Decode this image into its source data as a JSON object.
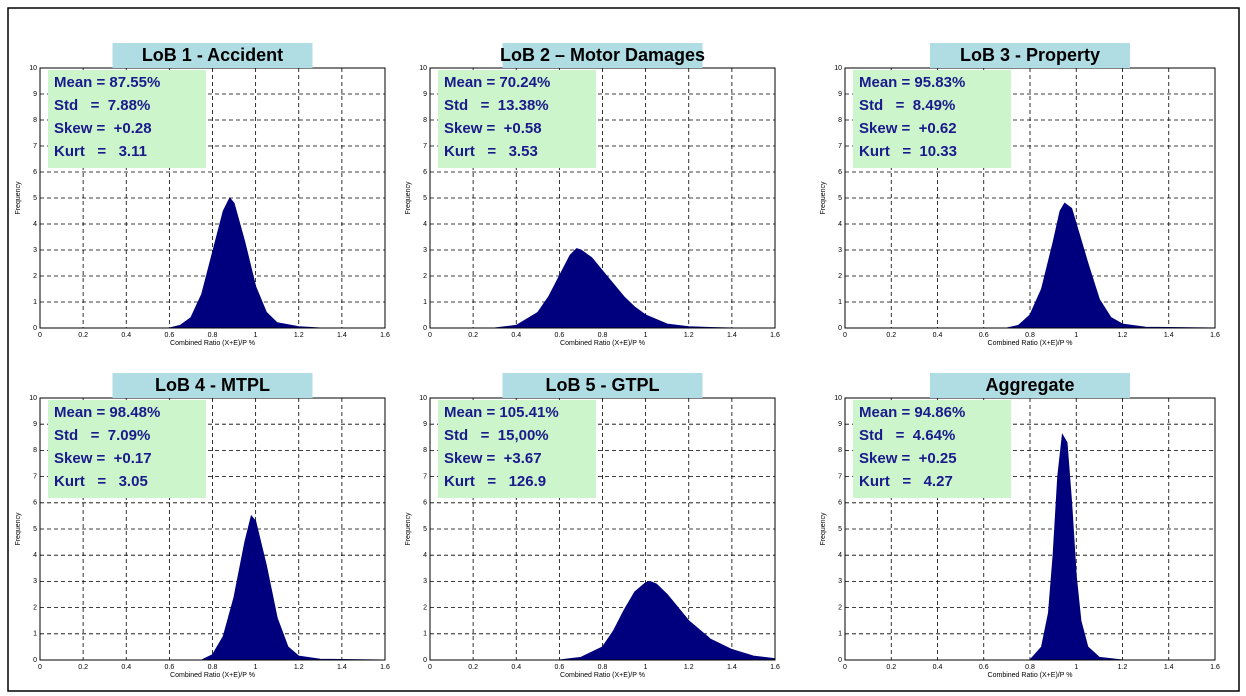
{
  "chart_data": [
    {
      "type": "area",
      "title": "LoB 1 - Accident",
      "stats": [
        "Mean = 87.55%",
        "Std   =  7.88%",
        "Skew =  +0.28",
        "Kurt   =   3.11"
      ],
      "x_label": "Combined Ratio (X+E)/P %",
      "y_label": "Frequency",
      "color": "#00007f",
      "x": [
        0.6,
        0.65,
        0.7,
        0.75,
        0.8,
        0.85,
        0.88,
        0.9,
        0.95,
        1.0,
        1.05,
        1.1,
        1.2,
        1.3
      ],
      "values": [
        0,
        0.1,
        0.4,
        1.3,
        2.9,
        4.5,
        5.0,
        4.8,
        3.3,
        1.6,
        0.6,
        0.2,
        0.05,
        0
      ],
      "xlim": [
        0,
        1.6
      ],
      "xticks": [
        0,
        0.2,
        0.4,
        0.6,
        0.8,
        1,
        1.2,
        1.4,
        1.6
      ],
      "ylim": [
        0,
        10
      ],
      "yticks": [
        0,
        1,
        2,
        3,
        4,
        5,
        6,
        7,
        8,
        9,
        10
      ],
      "grid": true
    },
    {
      "type": "area",
      "title": "LoB 2 – Motor Damages",
      "stats": [
        "Mean = 70.24%",
        "Std   =  13.38%",
        "Skew =  +0.58",
        "Kurt   =   3.53"
      ],
      "x_label": "Combined Ratio (X+E)/P %",
      "y_label": "Frequency",
      "color": "#00007f",
      "x": [
        0.3,
        0.4,
        0.5,
        0.55,
        0.6,
        0.65,
        0.68,
        0.7,
        0.75,
        0.8,
        0.85,
        0.9,
        0.95,
        1.0,
        1.1,
        1.2,
        1.3,
        1.4
      ],
      "values": [
        0,
        0.1,
        0.6,
        1.2,
        2.0,
        2.8,
        3.05,
        3.0,
        2.7,
        2.2,
        1.7,
        1.2,
        0.8,
        0.5,
        0.15,
        0.05,
        0.02,
        0
      ],
      "xlim": [
        0,
        1.6
      ],
      "xticks": [
        0,
        0.2,
        0.4,
        0.6,
        0.8,
        1,
        1.2,
        1.4,
        1.6
      ],
      "ylim": [
        0,
        10
      ],
      "yticks": [
        0,
        1,
        2,
        3,
        4,
        5,
        6,
        7,
        8,
        9,
        10
      ],
      "grid": true
    },
    {
      "type": "area",
      "title": "LoB 3 - Property",
      "stats": [
        "Mean = 95.83%",
        "Std   =  8.49%",
        "Skew =  +0.62",
        "Kurt   =  10.33"
      ],
      "x_label": "Combined Ratio (X+E)/P %",
      "y_label": "Frequency",
      "color": "#00007f",
      "x": [
        0.7,
        0.75,
        0.8,
        0.85,
        0.9,
        0.93,
        0.95,
        0.98,
        1.0,
        1.05,
        1.1,
        1.15,
        1.2,
        1.3,
        1.6
      ],
      "values": [
        0,
        0.1,
        0.5,
        1.5,
        3.3,
        4.5,
        4.8,
        4.6,
        4.0,
        2.5,
        1.1,
        0.4,
        0.15,
        0.03,
        0
      ],
      "xlim": [
        0,
        1.6
      ],
      "xticks": [
        0,
        0.2,
        0.4,
        0.6,
        0.8,
        1,
        1.2,
        1.4,
        1.6
      ],
      "ylim": [
        0,
        10
      ],
      "yticks": [
        0,
        1,
        2,
        3,
        4,
        5,
        6,
        7,
        8,
        9,
        10
      ],
      "grid": true
    },
    {
      "type": "area",
      "title": "LoB 4 - MTPL",
      "stats": [
        "Mean = 98.48%",
        "Std   =  7.09%",
        "Skew =  +0.17",
        "Kurt   =   3.05"
      ],
      "x_label": "Combined Ratio (X+E)/P %",
      "y_label": "Frequency",
      "color": "#00007f",
      "x": [
        0.75,
        0.8,
        0.85,
        0.9,
        0.95,
        0.98,
        1.0,
        1.05,
        1.1,
        1.15,
        1.2,
        1.3,
        1.6
      ],
      "values": [
        0,
        0.2,
        0.9,
        2.4,
        4.5,
        5.5,
        5.3,
        3.6,
        1.6,
        0.5,
        0.15,
        0.03,
        0
      ],
      "xlim": [
        0,
        1.6
      ],
      "xticks": [
        0,
        0.2,
        0.4,
        0.6,
        0.8,
        1,
        1.2,
        1.4,
        1.6
      ],
      "ylim": [
        0,
        10
      ],
      "yticks": [
        0,
        1,
        2,
        3,
        4,
        5,
        6,
        7,
        8,
        9,
        10
      ],
      "grid": true
    },
    {
      "type": "area",
      "title": "LoB 5 - GTPL",
      "stats": [
        "Mean = 105.41%",
        "Std   =  15,00%",
        "Skew =  +3.67",
        "Kurt   =   126.9"
      ],
      "x_label": "Combined Ratio (X+E)/P %",
      "y_label": "Frequency",
      "color": "#00007f",
      "x": [
        0.6,
        0.7,
        0.8,
        0.85,
        0.9,
        0.95,
        1.0,
        1.02,
        1.05,
        1.1,
        1.15,
        1.2,
        1.3,
        1.4,
        1.5,
        1.6
      ],
      "values": [
        0,
        0.1,
        0.5,
        1.1,
        1.9,
        2.6,
        2.95,
        3.0,
        2.9,
        2.5,
        2.0,
        1.5,
        0.8,
        0.4,
        0.15,
        0.05
      ],
      "xlim": [
        0,
        1.6
      ],
      "xticks": [
        0,
        0.2,
        0.4,
        0.6,
        0.8,
        1,
        1.2,
        1.4,
        1.6
      ],
      "ylim": [
        0,
        10
      ],
      "yticks": [
        0,
        1,
        2,
        3,
        4,
        5,
        6,
        7,
        8,
        9,
        10
      ],
      "grid": true
    },
    {
      "type": "area",
      "title": "Aggregate",
      "stats": [
        "Mean = 94.86%",
        "Std   =  4.64%",
        "Skew =  +0.25",
        "Kurt   =   4.27"
      ],
      "x_label": "Combined Ratio (X+E)/P %",
      "y_label": "Frequency",
      "color": "#00007f",
      "x": [
        0.8,
        0.85,
        0.88,
        0.9,
        0.92,
        0.94,
        0.96,
        0.98,
        1.0,
        1.02,
        1.05,
        1.1,
        1.2
      ],
      "values": [
        0,
        0.5,
        1.8,
        4.0,
        7.0,
        8.6,
        8.3,
        6.0,
        3.2,
        1.5,
        0.5,
        0.1,
        0
      ],
      "xlim": [
        0,
        1.6
      ],
      "xticks": [
        0,
        0.2,
        0.4,
        0.6,
        0.8,
        1,
        1.2,
        1.4,
        1.6
      ],
      "ylim": [
        0,
        10
      ],
      "yticks": [
        0,
        1,
        2,
        3,
        4,
        5,
        6,
        7,
        8,
        9,
        10
      ],
      "grid": true
    }
  ]
}
